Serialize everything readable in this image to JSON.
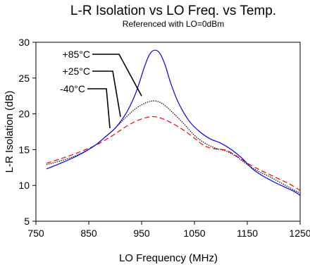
{
  "chart_data": {
    "type": "line",
    "title": "L-R Isolation vs LO Freq. vs Temp.",
    "subtitle": "Referenced with LO=0dBm",
    "xlabel": "LO Frequency (MHz)",
    "ylabel": "L-R Isolation (dB)",
    "xlim": [
      750,
      1250
    ],
    "ylim": [
      5,
      30
    ],
    "x_ticks": [
      750,
      850,
      950,
      1050,
      1150,
      1250
    ],
    "y_ticks": [
      5,
      10,
      15,
      20,
      25,
      30
    ],
    "grid": false,
    "series": [
      {
        "name": "+85°C",
        "color": "#0000ff",
        "dash": "solid",
        "x": [
          770,
          800,
          830,
          860,
          880,
          900,
          920,
          935,
          945,
          955,
          965,
          975,
          985,
          995,
          1005,
          1020,
          1040,
          1060,
          1080,
          1100,
          1120,
          1140,
          1160,
          1180,
          1200,
          1220,
          1240,
          1250
        ],
        "y": [
          12.3,
          13.2,
          14.2,
          15.5,
          16.7,
          18.0,
          20.0,
          22.2,
          24.2,
          26.5,
          28.3,
          28.9,
          28.4,
          26.7,
          24.3,
          21.5,
          19.0,
          17.5,
          16.5,
          15.9,
          15.0,
          13.8,
          12.3,
          11.3,
          10.5,
          9.8,
          9.1,
          8.6
        ]
      },
      {
        "name": "+25°C",
        "color": "#000000",
        "dash": "dotted",
        "x": [
          770,
          800,
          830,
          860,
          880,
          900,
          920,
          940,
          960,
          975,
          990,
          1010,
          1030,
          1050,
          1070,
          1090,
          1110,
          1130,
          1150,
          1170,
          1190,
          1210,
          1230,
          1250
        ],
        "y": [
          12.9,
          13.5,
          14.3,
          15.5,
          16.7,
          18.0,
          19.5,
          20.8,
          21.6,
          21.8,
          21.4,
          20.1,
          18.6,
          17.0,
          15.9,
          15.2,
          14.8,
          14.0,
          12.9,
          12.0,
          11.3,
          10.5,
          9.7,
          8.9
        ]
      },
      {
        "name": "-40°C",
        "color": "#ff0000",
        "dash": "dashed",
        "x": [
          770,
          800,
          830,
          860,
          880,
          900,
          920,
          940,
          960,
          975,
          990,
          1010,
          1030,
          1050,
          1070,
          1090,
          1110,
          1130,
          1150,
          1170,
          1190,
          1210,
          1230,
          1250
        ],
        "y": [
          13.1,
          13.8,
          14.6,
          15.5,
          16.3,
          17.2,
          18.2,
          19.0,
          19.5,
          19.6,
          19.3,
          18.6,
          17.7,
          16.6,
          15.5,
          15.1,
          14.9,
          14.1,
          13.1,
          12.3,
          11.6,
          10.9,
          10.2,
          9.3
        ]
      }
    ]
  }
}
